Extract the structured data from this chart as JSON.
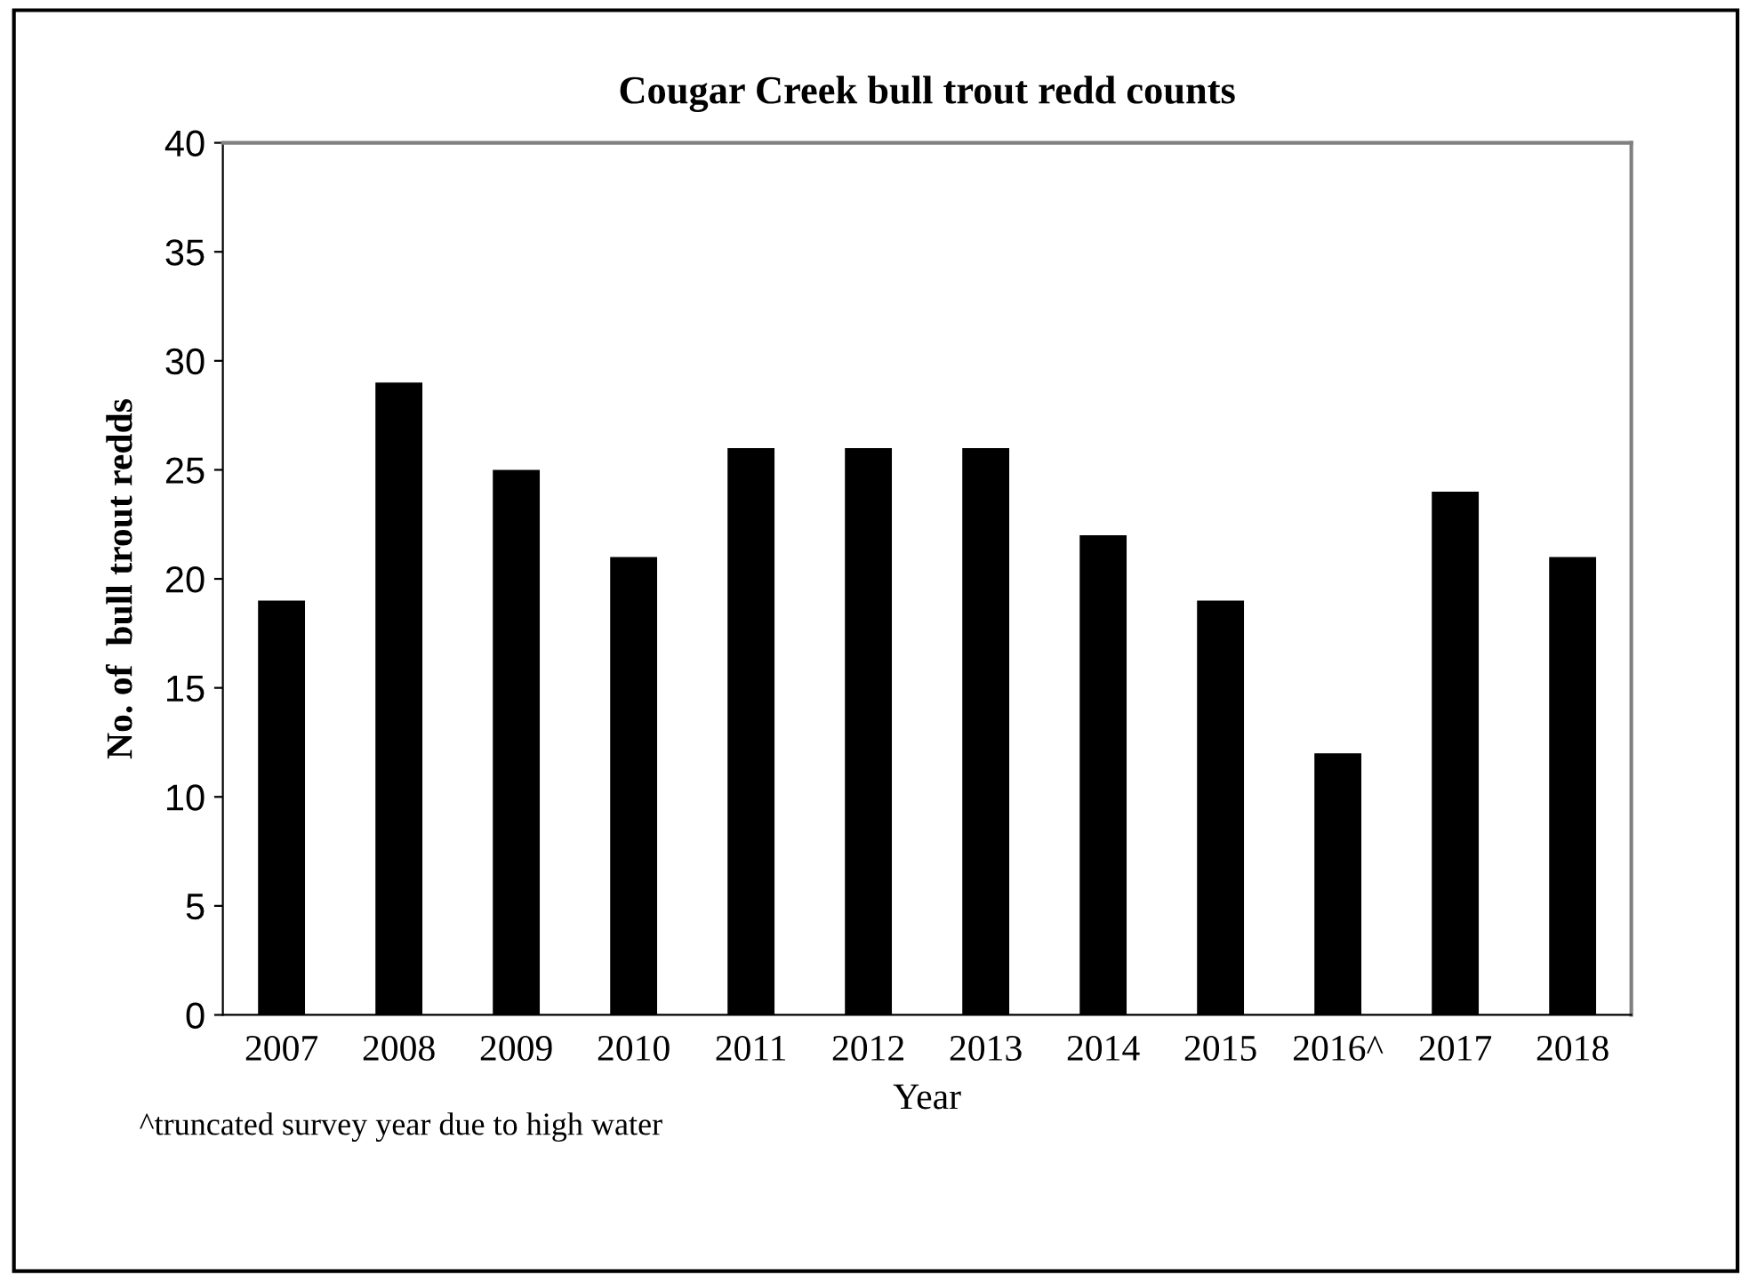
{
  "chart_data": {
    "type": "bar",
    "title": "Cougar Creek bull trout redd counts",
    "xlabel": "Year",
    "ylabel": "No. of  bull trout redds",
    "categories": [
      "2007",
      "2008",
      "2009",
      "2010",
      "2011",
      "2012",
      "2013",
      "2014",
      "2015",
      "2016^",
      "2017",
      "2018"
    ],
    "values": [
      19,
      29,
      25,
      21,
      26,
      26,
      26,
      22,
      19,
      12,
      24,
      21
    ],
    "color": "#000000",
    "ylim": [
      0,
      40
    ],
    "yticks": [
      0,
      5,
      10,
      15,
      20,
      25,
      30,
      35,
      40
    ],
    "grid": false,
    "annotations": [
      "^truncated survey year due to high water"
    ]
  }
}
